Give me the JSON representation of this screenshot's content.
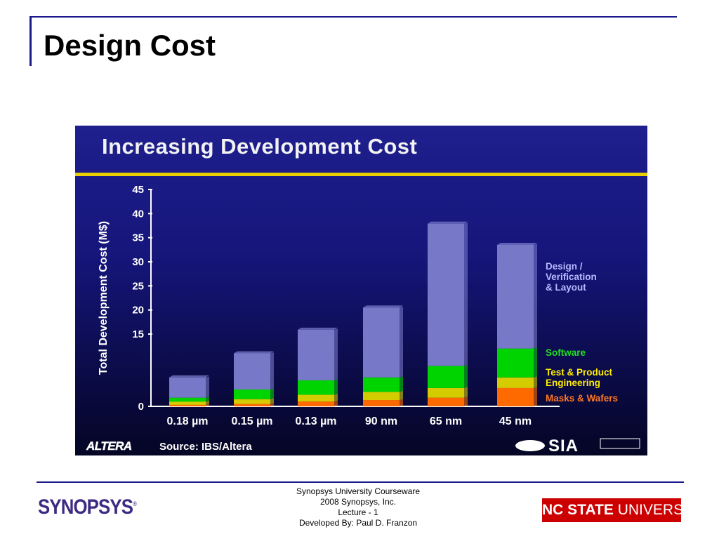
{
  "slide": {
    "title": "Design Cost"
  },
  "figure": {
    "title": "Increasing Development Cost",
    "source": "Source: IBS/Altera",
    "altera_logo": "ALTERA",
    "sia_logo": "SIA"
  },
  "chart_data": {
    "type": "bar",
    "stacked": true,
    "title": "Increasing Development Cost",
    "xlabel": "",
    "ylabel": "Total Development Cost (M$)",
    "ylim": [
      0,
      45
    ],
    "yticks": [
      0,
      15,
      20,
      25,
      30,
      35,
      40,
      45
    ],
    "categories": [
      "0.18 µm",
      "0.15 µm",
      "0.13 µm",
      "90 nm",
      "65 nm",
      "45 nm"
    ],
    "series": [
      {
        "name": "Masks & Wafers",
        "color": "#ff6a00",
        "values": [
          0.3,
          0.5,
          1.0,
          1.3,
          1.8,
          3.8
        ]
      },
      {
        "name": "Test & Product\nEngineering",
        "color": "#d4cc00",
        "values": [
          0.7,
          1.0,
          1.4,
          1.7,
          2.0,
          2.2
        ]
      },
      {
        "name": "Software",
        "color": "#00d400",
        "values": [
          0.8,
          2.0,
          3.0,
          3.0,
          4.6,
          6.0
        ]
      },
      {
        "name": "Design /\nVerification\n& Layout",
        "color": "#7878c8",
        "values": [
          4.2,
          7.5,
          10.5,
          14.5,
          29.5,
          21.5
        ]
      }
    ],
    "legend_text_colors": {
      "Design /\nVerification\n& Layout": "#b8b8ff",
      "Software": "#22dd22",
      "Test & Product\nEngineering": "#ffee00",
      "Masks & Wafers": "#ff7722"
    },
    "legend_position": "right",
    "grid": false
  },
  "footer": {
    "courseware": "Synopsys University Courseware",
    "copyright": "2008 Synopsys, Inc.",
    "lecture": "Lecture - 1",
    "developer": "Developed By: Paul D. Franzon",
    "synopsys_logo": "SYNOPSYS",
    "registered": "®",
    "ncsu_bold": "NC STATE",
    "ncsu_rest": " UNIVERSITY"
  }
}
